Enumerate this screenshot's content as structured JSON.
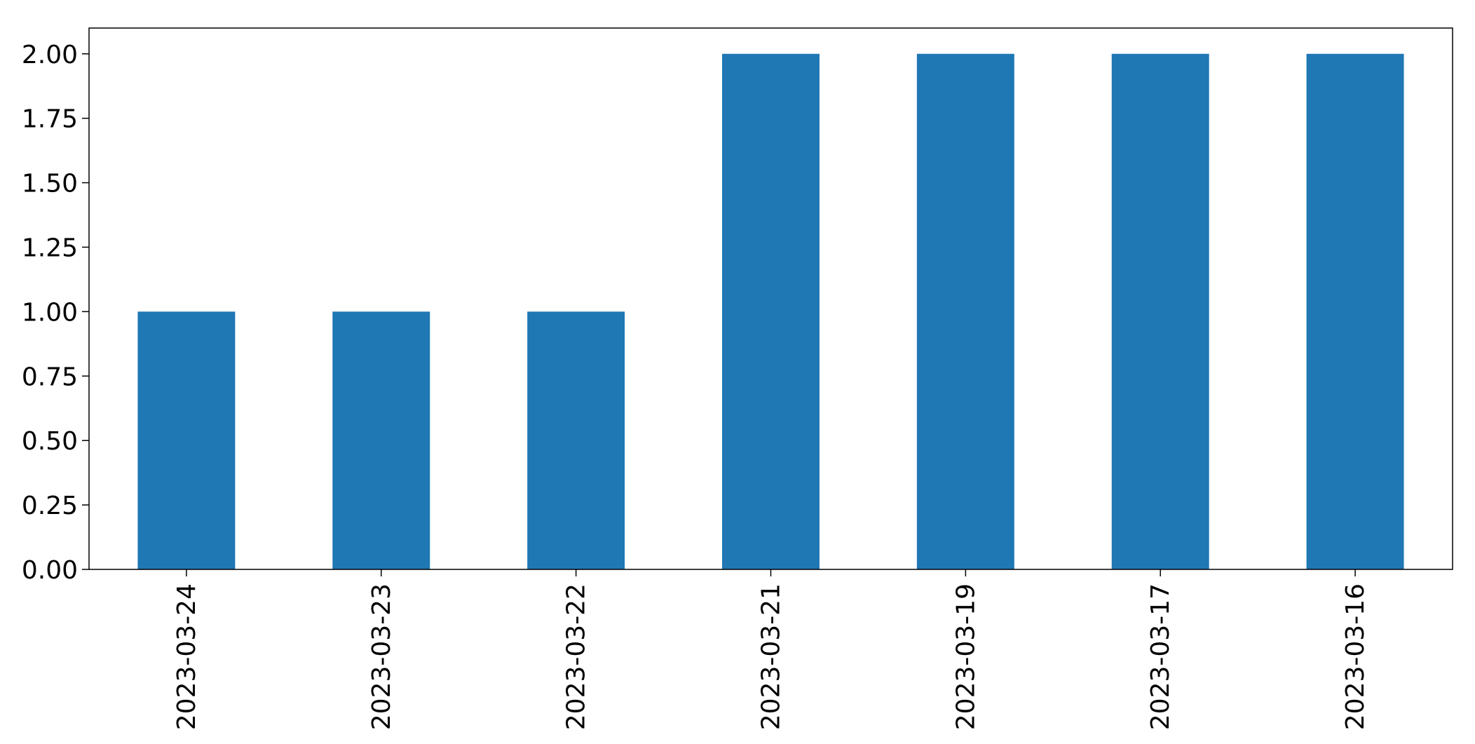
{
  "chart_data": {
    "type": "bar",
    "categories": [
      "2023-03-24",
      "2023-03-23",
      "2023-03-22",
      "2023-03-21",
      "2023-03-19",
      "2023-03-17",
      "2023-03-16"
    ],
    "values": [
      1,
      1,
      1,
      2,
      2,
      2,
      2
    ],
    "title": "",
    "xlabel": "",
    "ylabel": "",
    "ylim": [
      0,
      2.1
    ],
    "yticks": [
      "0.00",
      "0.25",
      "0.50",
      "0.75",
      "1.00",
      "1.25",
      "1.50",
      "1.75",
      "2.00"
    ],
    "bar_color": "#1f77b4",
    "grid": false,
    "legend": "none"
  }
}
